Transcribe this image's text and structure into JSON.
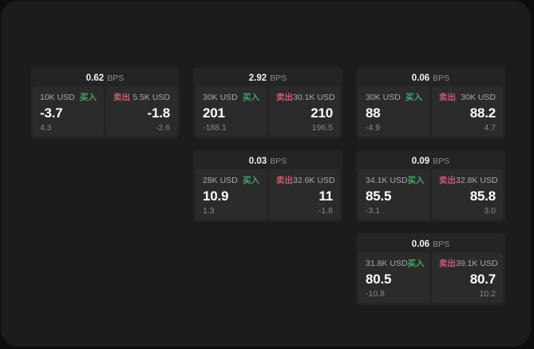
{
  "labels": {
    "bps_unit": "BPS",
    "buy": "买入",
    "sell": "卖出"
  },
  "colors": {
    "buy": "#44a56b",
    "sell": "#c95a6e",
    "window_bg": "#1c1c1c",
    "panel_bg": "#242424",
    "tile_bg": "#2b2b2b"
  },
  "panels": [
    {
      "bps": "0.62",
      "buy": {
        "amount": "10K USD",
        "price": "-3.7",
        "delta": "4.3"
      },
      "sell": {
        "amount": "5.5K USD",
        "price": "-1.8",
        "delta": "-2.6"
      }
    },
    {
      "bps": "2.92",
      "buy": {
        "amount": "30K USD",
        "price": "201",
        "delta": "-188.1"
      },
      "sell": {
        "amount": "30.1K USD",
        "price": "210",
        "delta": "196.5"
      }
    },
    {
      "bps": "0.06",
      "buy": {
        "amount": "30K USD",
        "price": "88",
        "delta": "-4.9"
      },
      "sell": {
        "amount": "30K USD",
        "price": "88.2",
        "delta": "4.7"
      }
    },
    {
      "bps": "0.03",
      "buy": {
        "amount": "28K USD",
        "price": "10.9",
        "delta": "1.3"
      },
      "sell": {
        "amount": "32.6K USD",
        "price": "11",
        "delta": "-1.8"
      }
    },
    {
      "bps": "0.09",
      "buy": {
        "amount": "34.1K USD",
        "price": "85.5",
        "delta": "-3.1"
      },
      "sell": {
        "amount": "32.8K USD",
        "price": "85.8",
        "delta": "3.0"
      }
    },
    {
      "bps": "0.06",
      "buy": {
        "amount": "31.8K USD",
        "price": "80.5",
        "delta": "-10.8"
      },
      "sell": {
        "amount": "39.1K USD",
        "price": "80.7",
        "delta": "10.2"
      }
    }
  ]
}
